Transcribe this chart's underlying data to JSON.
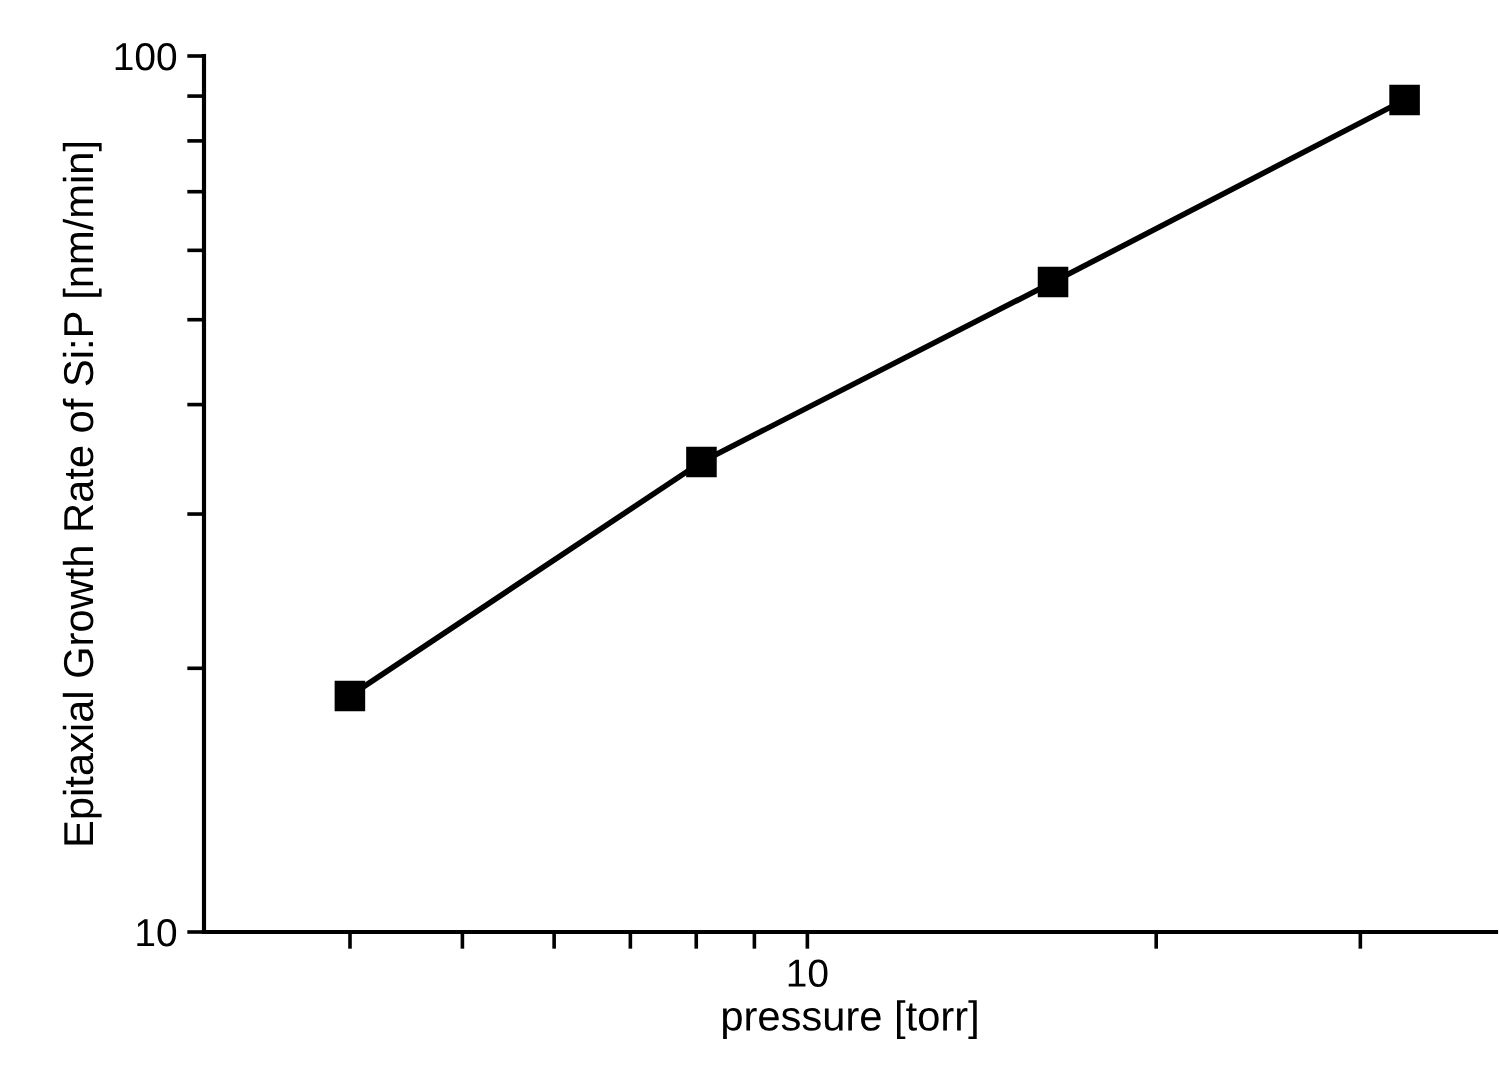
{
  "chart_data": {
    "type": "line",
    "xlabel": "pressure [torr]",
    "ylabel": "Epitaxial Growth Rate of Si:P [nm/min]",
    "categories": [
      null,
      null,
      null,
      null
    ],
    "values": [
      18.6,
      34.4,
      55.2,
      89.1
    ],
    "color": "#000000",
    "marker": "square",
    "line_style": "solid",
    "annotations": [
      "10"
    ],
    "log": "y",
    "ylim": [
      10,
      100
    ],
    "yticks": [
      10,
      {
        "value": 20,
        "label": null
      },
      {
        "value": 30,
        "label": null
      },
      {
        "value": 40,
        "label": null
      },
      {
        "value": 50,
        "label": null
      },
      {
        "value": 60,
        "label": null
      },
      {
        "value": 70,
        "label": null
      },
      {
        "value": 80,
        "label": null
      },
      {
        "value": 90,
        "label": null
      },
      100
    ],
    "grid": false,
    "legend": false
  }
}
